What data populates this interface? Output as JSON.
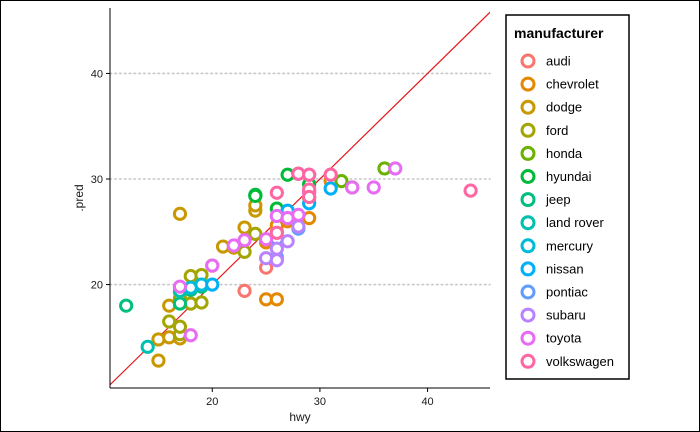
{
  "chart_data": {
    "type": "scatter",
    "xlabel": "hwy",
    "ylabel": ".pred",
    "xlim": [
      10.5,
      45.8
    ],
    "ylim": [
      10.2,
      46.2
    ],
    "x_ticks": [
      20,
      30,
      40
    ],
    "y_ticks": [
      20,
      30,
      40
    ],
    "x_tick_labels": [
      "20",
      "30",
      "40"
    ],
    "y_tick_labels": [
      "20",
      "30",
      "40"
    ],
    "grid": "horizontal dotted",
    "reference_line": {
      "slope": 1,
      "intercept": 0,
      "color": "#e41a1c"
    },
    "legend": {
      "title": "manufacturer",
      "position": "right"
    },
    "series": [
      {
        "name": "audi",
        "color": "#F8766D",
        "points": [
          [
            23,
            19.4
          ],
          [
            25,
            21.6
          ],
          [
            26,
            25
          ],
          [
            27,
            26.3
          ],
          [
            28,
            26.2
          ],
          [
            29,
            28.8
          ],
          [
            31,
            30.4
          ]
        ]
      },
      {
        "name": "chevrolet",
        "color": "#E58700",
        "points": [
          [
            25,
            18.6
          ],
          [
            26,
            18.6
          ],
          [
            26,
            25.6
          ],
          [
            27,
            26
          ],
          [
            29,
            26.3
          ],
          [
            29,
            28.2
          ],
          [
            31,
            29.8
          ],
          [
            25,
            24
          ]
        ]
      },
      {
        "name": "dodge",
        "color": "#C99800",
        "points": [
          [
            15,
            12.8
          ],
          [
            15,
            14.8
          ],
          [
            16,
            15
          ],
          [
            17,
            14.9
          ],
          [
            16,
            18
          ],
          [
            17,
            26.7
          ],
          [
            21,
            23.6
          ],
          [
            23,
            25.4
          ],
          [
            24,
            27
          ],
          [
            24,
            27.5
          ],
          [
            22,
            23.5
          ],
          [
            17,
            19.3
          ]
        ]
      },
      {
        "name": "ford",
        "color": "#A3A500",
        "points": [
          [
            16,
            16.5
          ],
          [
            17,
            15.3
          ],
          [
            17,
            16
          ],
          [
            18,
            18.2
          ],
          [
            19,
            18.3
          ],
          [
            18,
            20.8
          ],
          [
            19,
            20.9
          ],
          [
            23,
            23.1
          ],
          [
            24,
            24.8
          ],
          [
            17,
            18.7
          ],
          [
            20,
            21.8
          ]
        ]
      },
      {
        "name": "honda",
        "color": "#6BB100",
        "points": [
          [
            32,
            29.8
          ],
          [
            36,
            31
          ],
          [
            33,
            29.2
          ]
        ]
      },
      {
        "name": "hyundai",
        "color": "#00BA38",
        "points": [
          [
            24,
            28.5
          ],
          [
            26,
            27.2
          ],
          [
            27,
            30.4
          ],
          [
            28,
            30.5
          ],
          [
            29,
            29.5
          ],
          [
            26,
            24.5
          ],
          [
            24,
            28.4
          ]
        ]
      },
      {
        "name": "jeep",
        "color": "#00BF7D",
        "points": [
          [
            12,
            18
          ],
          [
            17,
            18.2
          ],
          [
            19,
            19.8
          ],
          [
            18,
            19.5
          ]
        ]
      },
      {
        "name": "land rover",
        "color": "#00C0AF",
        "points": [
          [
            14,
            14.1
          ],
          [
            17,
            19.4
          ]
        ]
      },
      {
        "name": "mercury",
        "color": "#00BCD8",
        "points": [
          [
            18,
            19.7
          ],
          [
            19,
            20
          ]
        ]
      },
      {
        "name": "nissan",
        "color": "#00B0F6",
        "points": [
          [
            20,
            20
          ],
          [
            26,
            24.3
          ],
          [
            29,
            27.7
          ],
          [
            31,
            29.1
          ],
          [
            27,
            27
          ]
        ]
      },
      {
        "name": "pontiac",
        "color": "#619CFF",
        "points": [
          [
            26,
            22.6
          ],
          [
            28,
            25.3
          ],
          [
            27,
            26.3
          ]
        ]
      },
      {
        "name": "subaru",
        "color": "#B983FF",
        "points": [
          [
            25,
            22.5
          ],
          [
            26,
            23.4
          ],
          [
            27,
            24.1
          ],
          [
            28,
            25.5
          ],
          [
            26,
            22.3
          ]
        ]
      },
      {
        "name": "toyota",
        "color": "#E76BF3",
        "points": [
          [
            17,
            19.8
          ],
          [
            18,
            15.2
          ],
          [
            20,
            21.8
          ],
          [
            22,
            23.7
          ],
          [
            23,
            24.2
          ],
          [
            25,
            24.3
          ],
          [
            26,
            26.5
          ],
          [
            27,
            26.3
          ],
          [
            28,
            26.6
          ],
          [
            29,
            28.7
          ],
          [
            33,
            29.2
          ],
          [
            35,
            29.2
          ],
          [
            37,
            31
          ],
          [
            29,
            30.4
          ]
        ]
      },
      {
        "name": "volkswagen",
        "color": "#FF67A4",
        "points": [
          [
            26,
            28.7
          ],
          [
            28,
            30.5
          ],
          [
            29,
            30.4
          ],
          [
            29,
            29
          ],
          [
            44,
            28.9
          ],
          [
            29,
            28.3
          ],
          [
            31,
            30.4
          ],
          [
            26,
            24.9
          ]
        ]
      }
    ]
  }
}
